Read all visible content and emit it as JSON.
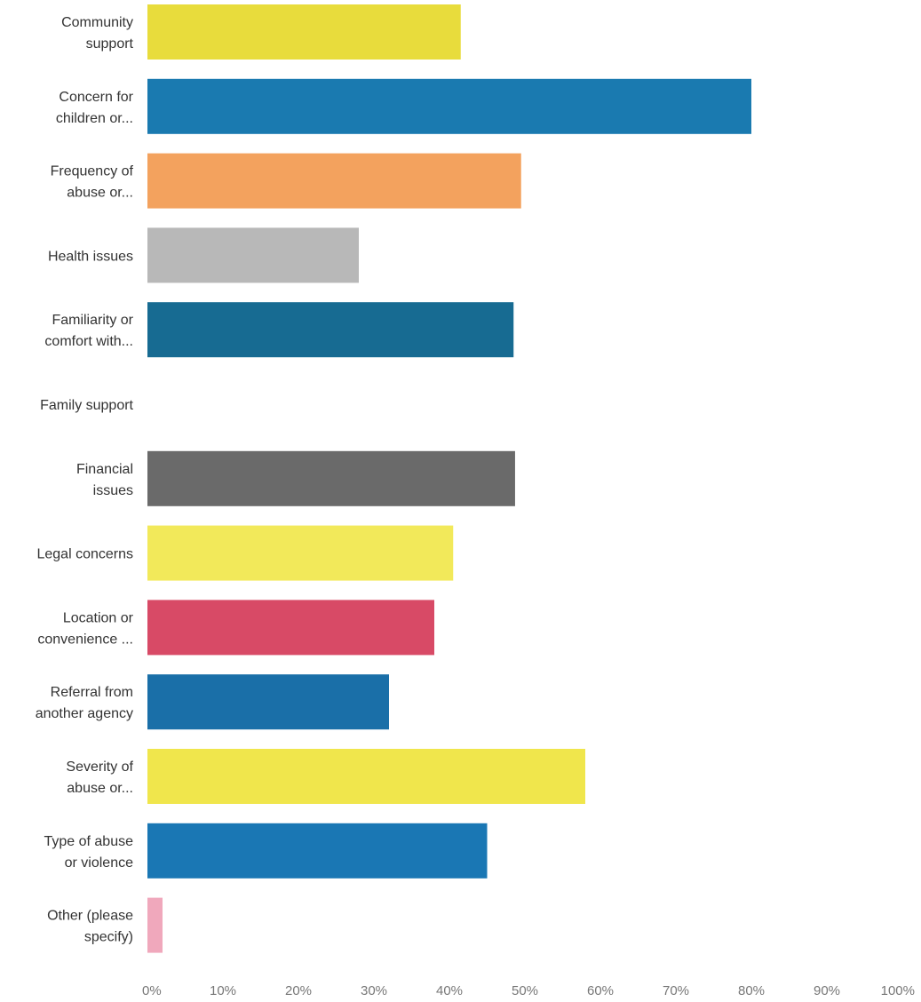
{
  "chart_data": {
    "type": "bar",
    "orientation": "horizontal",
    "categories": [
      [
        "Community",
        "support"
      ],
      [
        "Concern for",
        "children or..."
      ],
      [
        "Frequency of",
        "abuse or..."
      ],
      [
        "Health issues"
      ],
      [
        "Familiarity or",
        "comfort with..."
      ],
      [
        "Family support"
      ],
      [
        "Financial",
        "issues"
      ],
      [
        "Legal concerns"
      ],
      [
        "Location or",
        "convenience ..."
      ],
      [
        "Referral from",
        "another agency"
      ],
      [
        "Severity of",
        "abuse or..."
      ],
      [
        "Type of abuse",
        "or violence"
      ],
      [
        "Other (please",
        "specify)"
      ]
    ],
    "values": [
      41.5,
      80,
      49.5,
      28,
      48.5,
      0,
      48.7,
      40.5,
      38,
      32,
      58,
      45,
      2
    ],
    "bar_colors": [
      "#e8dc3c",
      "#1a7ab0",
      "#f3a25e",
      "#b8b8b8",
      "#176b92",
      "#ffffff",
      "#6a6a6a",
      "#f2e95a",
      "#d84a66",
      "#1a6fa8",
      "#f0e64c",
      "#1a77b4",
      "#f0a8bc"
    ],
    "xlim": [
      0,
      100
    ],
    "x_ticks": [
      "0%",
      "10%",
      "20%",
      "30%",
      "40%",
      "50%",
      "60%",
      "70%",
      "80%",
      "90%",
      "100%"
    ],
    "grid": false,
    "title": "",
    "xlabel": "",
    "ylabel": ""
  }
}
